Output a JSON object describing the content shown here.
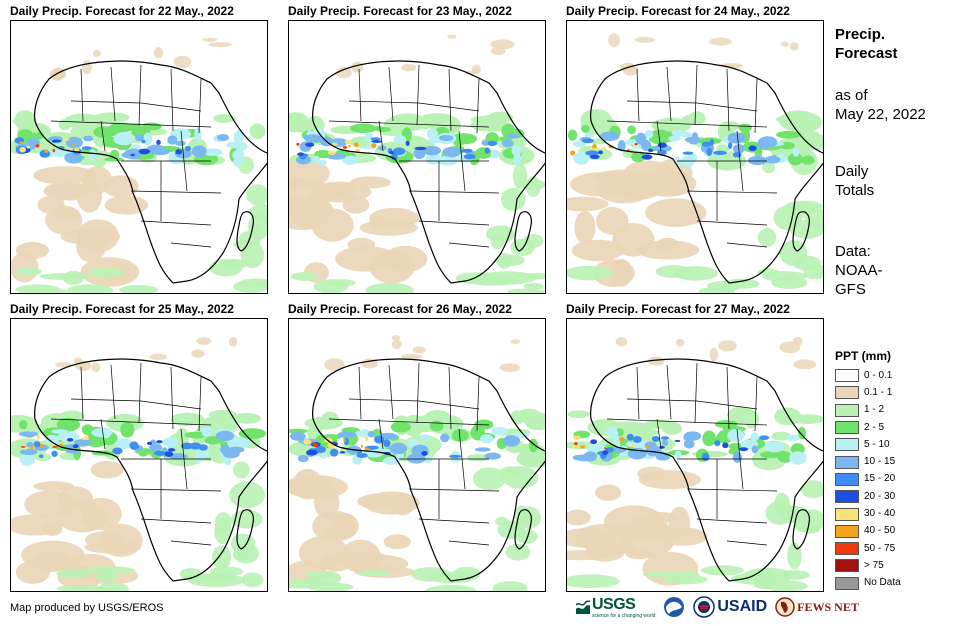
{
  "panels": [
    {
      "title": "Daily Precip. Forecast for 22 May., 2022"
    },
    {
      "title": "Daily Precip. Forecast for 23 May., 2022"
    },
    {
      "title": "Daily Precip. Forecast for 24 May., 2022"
    },
    {
      "title": "Daily Precip. Forecast for 25 May., 2022"
    },
    {
      "title": "Daily Precip. Forecast for 26 May., 2022"
    },
    {
      "title": "Daily Precip. Forecast for 27 May., 2022"
    }
  ],
  "side": {
    "title_line1": "Precip.",
    "title_line2": "Forecast",
    "asof_line1": "as of",
    "asof_line2": "May 22, 2022",
    "totals_line1": "Daily",
    "totals_line2": "Totals",
    "data_line1": "Data:",
    "data_line2": "NOAA-",
    "data_line3": "GFS"
  },
  "legend": {
    "title": "PPT (mm)",
    "items": [
      {
        "label": "0 - 0.1",
        "color": "#ffffff"
      },
      {
        "label": "0.1 - 1",
        "color": "#ead5b6"
      },
      {
        "label": "1 - 2",
        "color": "#b9f2b4"
      },
      {
        "label": "2 - 5",
        "color": "#6fe36a"
      },
      {
        "label": "5 - 10",
        "color": "#b8f0f5"
      },
      {
        "label": "10 - 15",
        "color": "#7ab8ef"
      },
      {
        "label": "15 - 20",
        "color": "#3f8ff0"
      },
      {
        "label": "20 - 30",
        "color": "#1b50e0"
      },
      {
        "label": "30 - 40",
        "color": "#f8e37a"
      },
      {
        "label": "40 - 50",
        "color": "#f5a31a"
      },
      {
        "label": "50 - 75",
        "color": "#f03a0c"
      },
      {
        "label": "> 75",
        "color": "#a01010"
      },
      {
        "label": "No Data",
        "color": "#999999"
      }
    ]
  },
  "credit": "Map produced by USGS/EROS",
  "logos": {
    "usgs": "USGS",
    "usgs_tagline": "science for a changing world",
    "usaid": "USAID",
    "fews": "FEWS NET"
  }
}
